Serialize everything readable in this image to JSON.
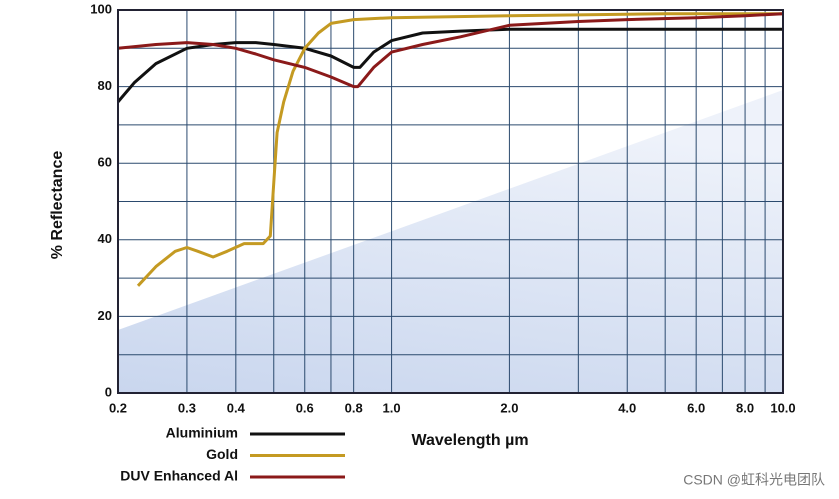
{
  "chart_data": {
    "type": "line",
    "x_label": "Wavelength µm",
    "y_label": "% Reflectance",
    "x_log": true,
    "xlim": [
      0.2,
      10
    ],
    "ylim": [
      0,
      100
    ],
    "xticks": [
      0.2,
      0.3,
      0.4,
      0.6,
      0.8,
      {
        "value": 1,
        "label": "1.0"
      },
      {
        "value": 2,
        "label": "2.0"
      },
      {
        "value": 4,
        "label": "4.0"
      },
      {
        "value": 6,
        "label": "6.0"
      },
      {
        "value": 8,
        "label": "8.0"
      },
      {
        "value": 10,
        "label": "10.0"
      }
    ],
    "x_minor_grid": [
      0.5,
      0.7,
      3,
      5,
      7,
      9
    ],
    "yticks": [
      0,
      20,
      40,
      60,
      80,
      100
    ],
    "y_minor_grid": [
      10,
      30,
      50,
      70,
      90
    ],
    "grid": true,
    "series": [
      {
        "name": "Aluminium",
        "color": "#111111",
        "x": [
          0.2,
          0.22,
          0.25,
          0.3,
          0.35,
          0.4,
          0.45,
          0.5,
          0.6,
          0.7,
          0.8,
          0.83,
          0.9,
          1,
          1.2,
          1.5,
          2,
          4,
          6,
          10
        ],
        "values": [
          76,
          81,
          86,
          90,
          91,
          91.5,
          91.5,
          91,
          90,
          88,
          85,
          85,
          89,
          92,
          94,
          94.5,
          95,
          95,
          95,
          95
        ]
      },
      {
        "name": "Gold",
        "color": "#c49a22",
        "x": [
          0.225,
          0.25,
          0.28,
          0.3,
          0.32,
          0.35,
          0.38,
          0.42,
          0.45,
          0.47,
          0.49,
          0.5,
          0.51,
          0.53,
          0.56,
          0.6,
          0.65,
          0.7,
          0.8,
          1,
          2,
          5,
          10
        ],
        "values": [
          28,
          33,
          37,
          38,
          37,
          35.5,
          37,
          39,
          39,
          39,
          41,
          55,
          68,
          76,
          84,
          90,
          94,
          96.5,
          97.5,
          98,
          98.5,
          99,
          99
        ]
      },
      {
        "name": "DUV Enhanced Al",
        "color": "#8b1a1a",
        "x": [
          0.2,
          0.25,
          0.3,
          0.35,
          0.4,
          0.45,
          0.5,
          0.6,
          0.7,
          0.8,
          0.82,
          0.9,
          1,
          1.2,
          1.5,
          2,
          3,
          4,
          6,
          8,
          10
        ],
        "values": [
          90,
          91,
          91.5,
          91,
          90,
          88.5,
          87,
          85,
          82.5,
          80,
          80,
          85,
          89,
          91,
          93,
          96,
          97,
          97.5,
          98,
          98.5,
          99
        ]
      }
    ],
    "watermark": "CSDN @虹科光电团队"
  }
}
